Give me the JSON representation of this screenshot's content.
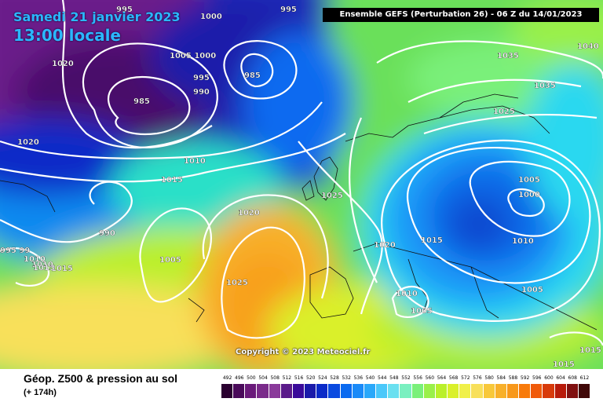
{
  "header": {
    "date_line": "Samedi 21 janvier 2023",
    "time_line": "13:00 locale",
    "model_line": "Ensemble GEFS  (Perturbation 26)  -  06 Z du 14/01/2023",
    "copyright": "Copyright © 2023 Meteociel.fr"
  },
  "footer": {
    "title": "Géop. Z500 & pression au sol",
    "lead": "(+ 174h)"
  },
  "isobar_labels": [
    "995",
    "1000",
    "995",
    "1020",
    "1005 1000",
    "995",
    "985",
    "990",
    "985",
    "1020",
    "1010",
    "1015",
    "1035",
    "1040",
    "1035",
    "1025",
    "1025",
    "1005",
    "1000",
    "1020",
    "1020",
    "1015",
    "1010",
    "1005",
    "990",
    "1010",
    "1015",
    "1025",
    "1010",
    "1005",
    "1005",
    "1015",
    "1015",
    "995 99",
    "1010",
    "1013"
  ],
  "scale": {
    "ticks": [
      "492",
      "496",
      "500",
      "504",
      "508",
      "512",
      "516",
      "520",
      "524",
      "528",
      "532",
      "536",
      "540",
      "544",
      "548",
      "552",
      "556",
      "560",
      "564",
      "568",
      "572",
      "576",
      "580",
      "584",
      "588",
      "592",
      "596",
      "600",
      "604",
      "608",
      "612"
    ],
    "colors": [
      "#2a0030",
      "#4a0a5a",
      "#6a1a7a",
      "#7a2a8a",
      "#8a3a9a",
      "#5a1a8a",
      "#3a0a9a",
      "#1a1aaa",
      "#0a2ac8",
      "#0a4ae0",
      "#0a6af0",
      "#1a8af8",
      "#2aa8fa",
      "#4ac8fa",
      "#6ae0f0",
      "#7af0c0",
      "#7af07a",
      "#9af04a",
      "#baf02a",
      "#daf02a",
      "#f0f04a",
      "#f8e05a",
      "#f8c83a",
      "#f8b02a",
      "#f8981a",
      "#f87a0a",
      "#f05a0a",
      "#d83a0a",
      "#b81a0a",
      "#801010",
      "#400808"
    ]
  }
}
